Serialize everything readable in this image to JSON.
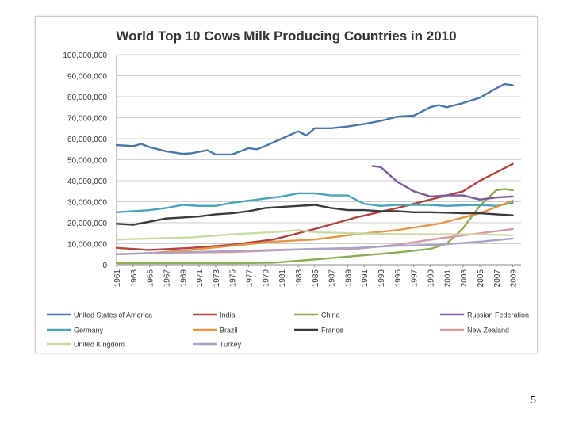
{
  "chart_data": {
    "type": "line",
    "title": "World Top 10 Cows Milk Producing Countries in 2010",
    "xlabel": "",
    "ylabel": "",
    "ylim": [
      0,
      100000000
    ],
    "yticks": [
      "100,000,000",
      "90,000,000",
      "80,000,000",
      "70,000,000",
      "60,000,000",
      "50,000,000",
      "40,000,000",
      "30,000,000",
      "20,000,000",
      "10,000,000",
      "0"
    ],
    "xticks": [
      "1961",
      "1963",
      "1965",
      "1967",
      "1969",
      "1971",
      "1973",
      "1975",
      "1977",
      "1979",
      "1981",
      "1983",
      "1985",
      "1987",
      "1989",
      "1991",
      "1993",
      "1995",
      "1997",
      "1999",
      "2001",
      "2003",
      "2005",
      "2007",
      "2009"
    ],
    "grid": true,
    "legend_position": "bottom",
    "series": [
      {
        "name": "United States of America",
        "color": "#4a77a9",
        "x": [
          1961,
          1963,
          1964,
          1965,
          1967,
          1969,
          1970,
          1972,
          1973,
          1975,
          1977,
          1978,
          1979,
          1981,
          1983,
          1984,
          1985,
          1987,
          1989,
          1991,
          1993,
          1995,
          1997,
          1999,
          2000,
          2001,
          2003,
          2005,
          2007,
          2008,
          2009
        ],
        "y": [
          57000000,
          56500000,
          57500000,
          56000000,
          54000000,
          52800000,
          53000000,
          54500000,
          52500000,
          52500000,
          55500000,
          55000000,
          56500000,
          60000000,
          63500000,
          61500000,
          65000000,
          65000000,
          65800000,
          67000000,
          68500000,
          70500000,
          71000000,
          75000000,
          76000000,
          75000000,
          77000000,
          79500000,
          84000000,
          86000000,
          85500000
        ]
      },
      {
        "name": "India",
        "color": "#b04542",
        "x": [
          1961,
          1965,
          1970,
          1975,
          1980,
          1985,
          1990,
          1995,
          2000,
          2003,
          2005,
          2007,
          2009
        ],
        "y": [
          8000000,
          7000000,
          8000000,
          9500000,
          12000000,
          17000000,
          22500000,
          27000000,
          32000000,
          35000000,
          40000000,
          44000000,
          48000000
        ]
      },
      {
        "name": "China",
        "color": "#8cab52",
        "x": [
          1961,
          1970,
          1975,
          1980,
          1985,
          1990,
          1995,
          1999,
          2001,
          2003,
          2005,
          2007,
          2008,
          2009
        ],
        "y": [
          700000,
          800000,
          700000,
          1000000,
          2500000,
          4200000,
          5800000,
          7500000,
          10000000,
          17500000,
          28000000,
          35500000,
          36000000,
          35500000
        ]
      },
      {
        "name": "Russian Federation",
        "color": "#7b5b99",
        "x": [
          1992,
          1993,
          1995,
          1997,
          1999,
          2001,
          2003,
          2005,
          2007,
          2009
        ],
        "y": [
          47000000,
          46500000,
          39500000,
          35000000,
          32500000,
          33000000,
          33000000,
          31000000,
          32000000,
          32500000
        ]
      },
      {
        "name": "Germany",
        "color": "#4aa3b8",
        "x": [
          1961,
          1963,
          1965,
          1967,
          1969,
          1971,
          1973,
          1975,
          1977,
          1979,
          1981,
          1983,
          1985,
          1987,
          1989,
          1991,
          1993,
          1995,
          1997,
          1999,
          2001,
          2003,
          2005,
          2007,
          2009
        ],
        "y": [
          25000000,
          25500000,
          26000000,
          27000000,
          28500000,
          28000000,
          28000000,
          29500000,
          30500000,
          31500000,
          32500000,
          34000000,
          34000000,
          33000000,
          33000000,
          29000000,
          28000000,
          28500000,
          28500000,
          28500000,
          28000000,
          28300000,
          28500000,
          28000000,
          29500000
        ]
      },
      {
        "name": "Brazil",
        "color": "#e39745",
        "x": [
          1961,
          1965,
          1970,
          1975,
          1980,
          1985,
          1990,
          1995,
          2000,
          2005,
          2009
        ],
        "y": [
          5000000,
          5500000,
          7000000,
          9000000,
          11000000,
          12000000,
          14500000,
          16500000,
          19500000,
          24500000,
          30500000
        ]
      },
      {
        "name": "France",
        "color": "#3a3a3a",
        "x": [
          1961,
          1963,
          1965,
          1967,
          1969,
          1971,
          1973,
          1975,
          1977,
          1979,
          1981,
          1983,
          1985,
          1987,
          1989,
          1991,
          1993,
          1995,
          1997,
          1999,
          2001,
          2003,
          2005,
          2007,
          2009
        ],
        "y": [
          19500000,
          19000000,
          20500000,
          22000000,
          22500000,
          23000000,
          24000000,
          24500000,
          25500000,
          27000000,
          27500000,
          28000000,
          28500000,
          27000000,
          26000000,
          26000000,
          25500000,
          25500000,
          25000000,
          25000000,
          24800000,
          24500000,
          24500000,
          24000000,
          23500000
        ]
      },
      {
        "name": "New Zealand",
        "color": "#d59aa3",
        "x": [
          1961,
          1965,
          1970,
          1975,
          1980,
          1985,
          1990,
          1995,
          2000,
          2005,
          2009
        ],
        "y": [
          5000000,
          5500000,
          5800000,
          6000000,
          6800000,
          7500000,
          7500000,
          9500000,
          12500000,
          15000000,
          17000000
        ]
      },
      {
        "name": "United Kingdom",
        "color": "#c9dba5",
        "x": [
          1961,
          1965,
          1970,
          1975,
          1980,
          1983,
          1985,
          1990,
          1995,
          2000,
          2005,
          2009
        ],
        "y": [
          12000000,
          12500000,
          13000000,
          14500000,
          15500000,
          16500000,
          15500000,
          15000000,
          14500000,
          14500000,
          14500000,
          14000000
        ]
      },
      {
        "name": "Turkey",
        "color": "#ada2c6",
        "x": [
          1961,
          1965,
          1970,
          1975,
          1980,
          1985,
          1990,
          1995,
          2000,
          2005,
          2009
        ],
        "y": [
          5000000,
          5500000,
          6000000,
          6500000,
          7000000,
          7500000,
          8000000,
          9000000,
          9500000,
          11000000,
          12500000
        ]
      }
    ]
  },
  "page": {
    "number": "5"
  }
}
